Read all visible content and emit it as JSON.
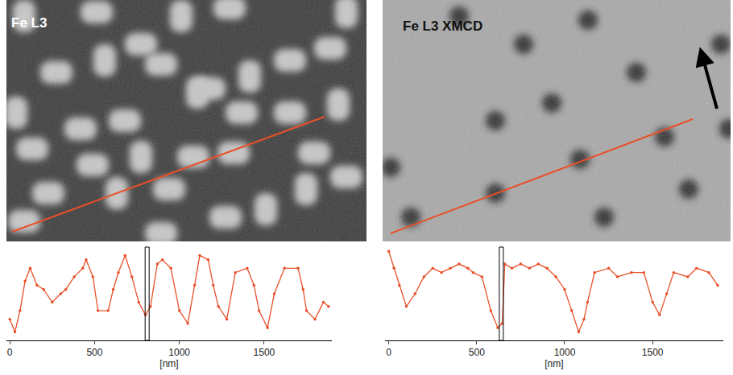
{
  "image_labels": [
    "Fe L3",
    "Fe L3 XMCD"
  ],
  "chart_data": [
    {
      "type": "line",
      "color": "#e8502a",
      "marker": "circle",
      "xlabel": "[nm]",
      "tick_labels": "x",
      "xlim": [
        -20,
        1900
      ],
      "xticks": [
        0,
        500,
        1000,
        1500
      ],
      "ylim": [
        -0.05,
        1.05
      ],
      "cursor_x": 810,
      "x": [
        0,
        30,
        60,
        90,
        120,
        160,
        200,
        250,
        300,
        330,
        380,
        430,
        450,
        490,
        520,
        580,
        610,
        640,
        680,
        720,
        760,
        800,
        830,
        870,
        900,
        950,
        1000,
        1050,
        1090,
        1120,
        1170,
        1200,
        1230,
        1280,
        1330,
        1400,
        1440,
        1470,
        1520,
        1560,
        1620,
        1700,
        1730,
        1750,
        1800,
        1850,
        1880
      ],
      "values": [
        0.2,
        0.05,
        0.3,
        0.65,
        0.8,
        0.6,
        0.55,
        0.4,
        0.5,
        0.55,
        0.7,
        0.8,
        0.9,
        0.7,
        0.3,
        0.3,
        0.55,
        0.75,
        0.95,
        0.7,
        0.4,
        0.25,
        0.35,
        0.85,
        0.9,
        0.8,
        0.3,
        0.15,
        0.6,
        0.95,
        0.9,
        0.6,
        0.35,
        0.2,
        0.75,
        0.8,
        0.6,
        0.3,
        0.1,
        0.5,
        0.8,
        0.8,
        0.55,
        0.3,
        0.2,
        0.4,
        0.35
      ]
    },
    {
      "type": "line",
      "color": "#e8502a",
      "marker": "circle",
      "xlabel": "[nm]",
      "tick_labels": "x",
      "xlim": [
        -20,
        1900
      ],
      "xticks": [
        0,
        500,
        1000,
        1500
      ],
      "ylim": [
        -0.05,
        1.05
      ],
      "cursor_x": 640,
      "x": [
        0,
        30,
        60,
        100,
        150,
        200,
        250,
        300,
        350,
        400,
        450,
        480,
        530,
        580,
        620,
        645,
        660,
        700,
        750,
        800,
        850,
        900,
        950,
        1000,
        1040,
        1080,
        1110,
        1130,
        1170,
        1250,
        1300,
        1380,
        1450,
        1500,
        1540,
        1580,
        1620,
        1700,
        1750,
        1820,
        1870
      ],
      "values": [
        1.0,
        0.8,
        0.6,
        0.35,
        0.5,
        0.7,
        0.8,
        0.75,
        0.8,
        0.85,
        0.8,
        0.75,
        0.7,
        0.3,
        0.1,
        0.15,
        0.85,
        0.8,
        0.85,
        0.8,
        0.85,
        0.8,
        0.7,
        0.55,
        0.3,
        0.05,
        0.2,
        0.4,
        0.75,
        0.8,
        0.7,
        0.75,
        0.75,
        0.4,
        0.25,
        0.5,
        0.75,
        0.7,
        0.8,
        0.75,
        0.6
      ]
    }
  ]
}
